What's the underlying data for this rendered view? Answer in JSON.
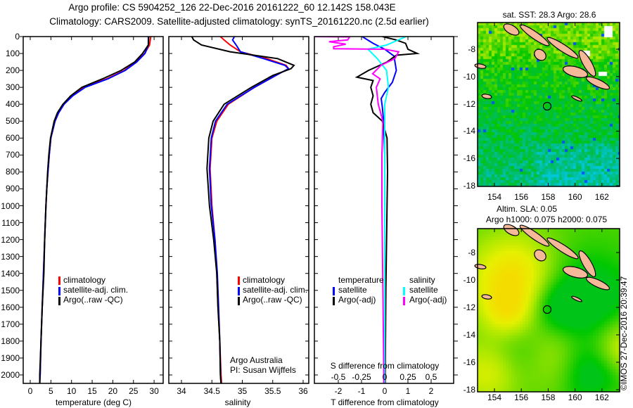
{
  "header": {
    "title_line1": "Argo profile: CS 5904252_126 22-Dec-2016 20161222_60 12.142S 158.043E",
    "title_line2": "Climatology: CARS2009. Satellite-adjusted climatology: synTS_20161220.nc (2.5d earlier)"
  },
  "depth_ticks": [
    "0",
    "100",
    "200",
    "300",
    "400",
    "500",
    "600",
    "700",
    "800",
    "900",
    "1000",
    "1100",
    "1200",
    "1300",
    "1400",
    "1500",
    "1600",
    "1700",
    "1800",
    "1900",
    "2000"
  ],
  "chart_data": [
    {
      "type": "line",
      "title": "temperature profile",
      "xlabel": "temperature (deg C)",
      "ylabel": "depth",
      "xlim": [
        -1.7,
        32.2
      ],
      "ylim": [
        2050,
        0
      ],
      "xticks": [
        "0",
        "5",
        "10",
        "15",
        "20",
        "25",
        "30"
      ],
      "legend": [
        "climatology",
        "satellite-adj. clim.",
        "Argo(..raw -QC)"
      ],
      "depth": [
        0,
        50,
        100,
        150,
        200,
        250,
        300,
        350,
        400,
        450,
        500,
        600,
        700,
        800,
        900,
        1000,
        1200,
        1400,
        1600,
        1800,
        2000,
        2050
      ],
      "series": [
        {
          "name": "climatology",
          "color": "#ff0000",
          "values": [
            29.2,
            28.9,
            27.7,
            25.6,
            22.8,
            18.5,
            13.0,
            10.1,
            8.1,
            6.8,
            6.0,
            5.0,
            4.6,
            4.3,
            4.0,
            3.8,
            3.5,
            3.2,
            2.9,
            2.6,
            2.4,
            2.3
          ]
        },
        {
          "name": "satellite-adj. clim.",
          "color": "#0000ff",
          "values": [
            28.6,
            28.6,
            27.8,
            25.8,
            23.0,
            18.8,
            13.3,
            10.3,
            8.2,
            6.9,
            6.0,
            5.0,
            4.6,
            4.3,
            4.0,
            3.8,
            3.5,
            3.2,
            2.9,
            2.6,
            2.4,
            2.3
          ]
        },
        {
          "name": "Argo(..raw -QC)",
          "color": "#000000",
          "values": [
            28.7,
            28.6,
            27.2,
            25.3,
            22.0,
            17.5,
            12.5,
            9.8,
            7.9,
            6.6,
            5.8,
            4.9,
            4.5,
            4.2,
            4.0,
            3.8,
            3.5,
            3.3,
            2.9,
            2.6,
            2.3,
            2.3
          ]
        }
      ]
    },
    {
      "type": "line",
      "title": "salinity profile",
      "xlabel": "salinity",
      "xlim": [
        33.79,
        36.1
      ],
      "ylim": [
        2050,
        0
      ],
      "xticks": [
        "34",
        "34.5",
        "35",
        "35.5",
        "36"
      ],
      "legend": [
        "climatology",
        "satellite-adj. clim.",
        "Argo(..raw -QC)"
      ],
      "annotation": [
        "Argo Australia",
        "PI: Susan Wijffels"
      ],
      "depth": [
        0,
        20,
        50,
        90,
        130,
        170,
        190,
        230,
        300,
        400,
        500,
        600,
        780,
        1000,
        1200,
        1400,
        1600,
        1800,
        2000,
        2050
      ],
      "series": [
        {
          "name": "climatology",
          "color": "#ff0000",
          "values": [
            34.64,
            34.7,
            34.8,
            34.97,
            35.4,
            35.72,
            35.76,
            35.55,
            35.2,
            34.77,
            34.58,
            34.5,
            34.47,
            34.5,
            34.55,
            34.58,
            34.6,
            34.63,
            34.65,
            34.66
          ]
        },
        {
          "name": "satellite-adj. clim.",
          "color": "#0000ff",
          "values": [
            34.87,
            34.84,
            34.9,
            34.97,
            35.35,
            35.7,
            35.76,
            35.55,
            35.2,
            34.75,
            34.56,
            34.49,
            34.46,
            34.49,
            34.55,
            34.59,
            34.61,
            34.63,
            34.64,
            34.65
          ]
        },
        {
          "name": "Argo(..raw -QC)",
          "color": "#000000",
          "values": [
            34.17,
            34.2,
            34.33,
            34.8,
            35.58,
            35.85,
            35.8,
            35.5,
            35.15,
            34.7,
            34.52,
            34.45,
            34.42,
            34.46,
            34.53,
            34.58,
            34.6,
            34.63,
            34.64,
            34.65
          ]
        }
      ]
    },
    {
      "type": "line",
      "title": "difference from climatology",
      "xlabel": "T difference from climatology",
      "xlim": [
        -3,
        3
      ],
      "xticks": [
        "-2",
        "-1",
        "0",
        "1",
        "2"
      ],
      "x2label": "S difference from climatology",
      "x2lim": [
        -0.75,
        0.75
      ],
      "x2ticks": [
        "-0.5",
        "-0.25",
        "0",
        "0.25",
        "0.5"
      ],
      "legend": {
        "temperature_title": "temperature",
        "salinity_title": "salinity",
        "t_sat": "satellite",
        "t_argo": "Argo(-adj)",
        "s_sat": "satellite",
        "s_argo": "Argo(-adj)"
      },
      "series": [
        {
          "name": "temperature satellite",
          "axis": "T",
          "color": "#0000ff",
          "depth": [
            0,
            40,
            75,
            115,
            200,
            270,
            330,
            366,
            420,
            500,
            700,
            1000,
            1500,
            2000,
            2050
          ],
          "values": [
            -0.97,
            -0.5,
            0.0,
            0.4,
            0.5,
            0.33,
            0.0,
            -0.15,
            -0.1,
            -0.05,
            0.0,
            0.0,
            0.0,
            0.0,
            0.0
          ]
        },
        {
          "name": "temperature Argo(-adj)",
          "axis": "T",
          "color": "#000000",
          "depth": [
            0,
            20,
            40,
            75,
            100,
            110,
            150,
            200,
            240,
            260,
            300,
            350,
            400,
            450,
            500,
            600,
            800,
            1000,
            1500,
            2000,
            2050
          ],
          "values": [
            -0.1,
            0.5,
            0.9,
            1.0,
            1.4,
            0.5,
            0.1,
            -0.7,
            -1.2,
            -0.5,
            -0.6,
            -0.5,
            -0.6,
            -0.5,
            -0.1,
            0.1,
            0.12,
            0.1,
            0.05,
            0.02,
            0.02
          ]
        },
        {
          "name": "salinity satellite",
          "axis": "S",
          "color": "#00ffff",
          "depth": [
            0,
            50,
            75,
            130,
            200,
            300,
            400,
            600,
            1000,
            1500,
            2000,
            2050
          ],
          "values": [
            0.23,
            0.02,
            -0.18,
            -0.08,
            0.02,
            0.04,
            0.0,
            0.0,
            0.0,
            0.0,
            0.0,
            0.0
          ]
        },
        {
          "name": "salinity Argo(-adj)",
          "axis": "S",
          "color": "#ff00ff",
          "depth": [
            0,
            2,
            5,
            20,
            30,
            45,
            60,
            72,
            75,
            90,
            130,
            170,
            220,
            250,
            300,
            400,
            500,
            700,
            1000,
            1500,
            2000,
            2050
          ],
          "values": [
            -0.75,
            -0.38,
            -0.38,
            -0.4,
            -0.6,
            -0.42,
            -0.55,
            -0.55,
            0.0,
            0.15,
            0.11,
            -0.04,
            -0.13,
            -0.05,
            -0.09,
            -0.07,
            -0.02,
            -0.03,
            -0.03,
            -0.02,
            -0.01,
            -0.01
          ]
        }
      ]
    },
    {
      "type": "heatmap",
      "title": "sat. SST: 28.3 Argo: 28.6",
      "xticks": [
        "154",
        "156",
        "158",
        "160",
        "162"
      ],
      "yticks": [
        "-8",
        "-10",
        "-12",
        "-14",
        "-16",
        "-18"
      ],
      "argo_position": {
        "lat": -12.142,
        "lon": 158.043
      },
      "colors": {
        "land": "#f5b99a",
        "cold": "#00c8d8",
        "warm": "#a8e800"
      }
    },
    {
      "type": "heatmap",
      "title": "Altim. SLA: 0.05",
      "subtitle": "Argo h1000: 0.075 h2000: 0.075",
      "xticks": [
        "154",
        "156",
        "158",
        "160",
        "162"
      ],
      "yticks": [
        "-8",
        "-10",
        "-12",
        "-14",
        "-16",
        "-18"
      ],
      "argo_position": {
        "lat": -12.142,
        "lon": 158.043
      },
      "colors": {
        "land": "#f5b99a",
        "low": "#00c000",
        "high": "#f0e000"
      }
    }
  ],
  "footer": {
    "credit": "©IMOS 27-Dec-2016 20:39:47"
  }
}
